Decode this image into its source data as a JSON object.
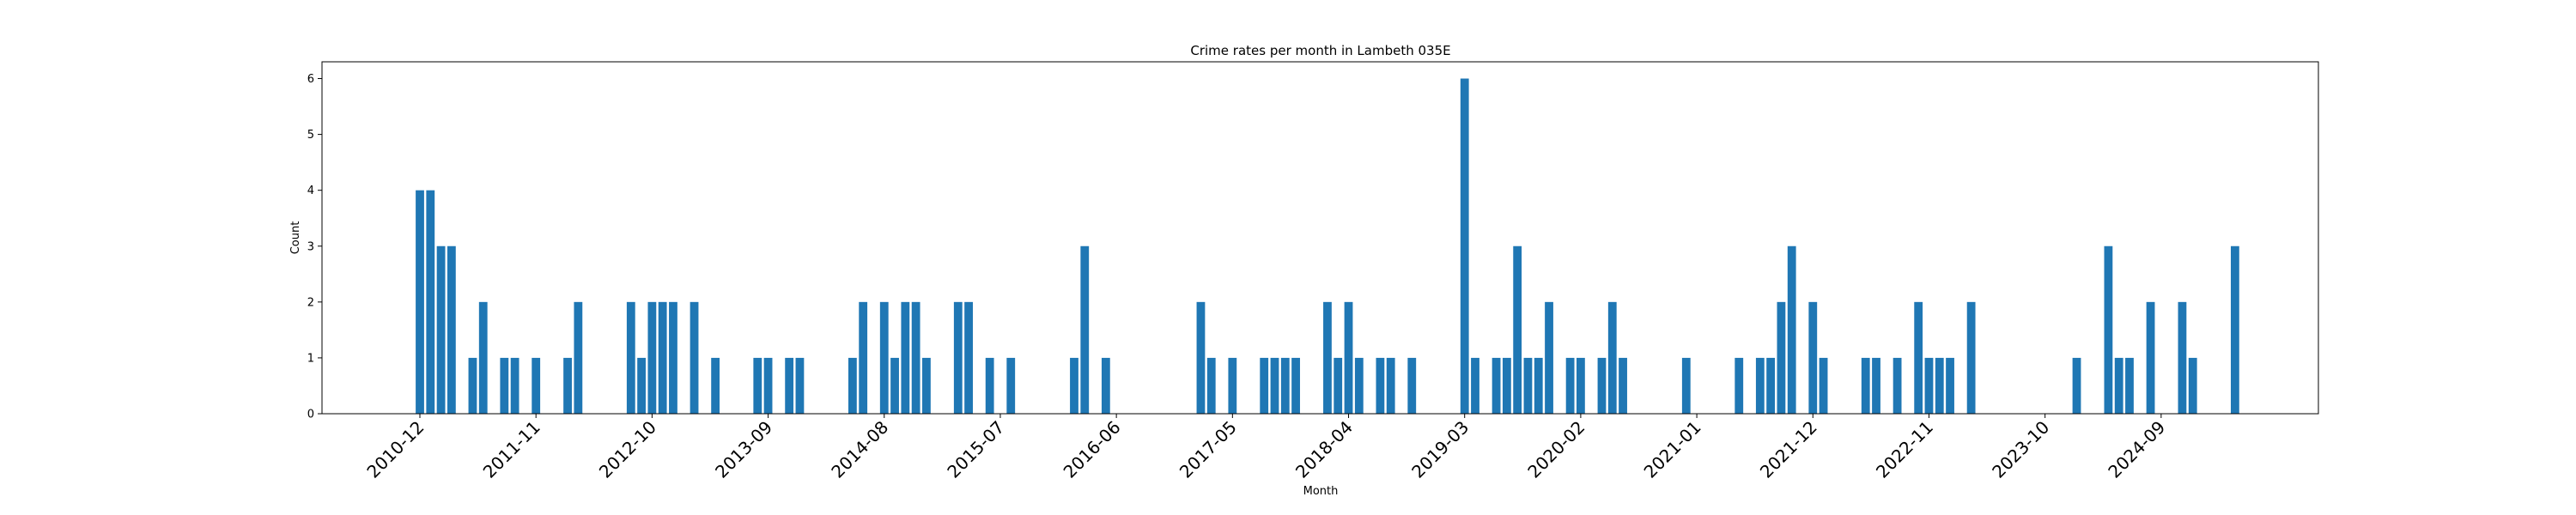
{
  "chart_data": {
    "type": "bar",
    "title": "Crime rates per month in Lambeth 035E",
    "xlabel": "Month",
    "ylabel": "Count",
    "ylim": [
      0,
      6.3
    ],
    "yticks": [
      0,
      1,
      2,
      3,
      4,
      5,
      6
    ],
    "grid": false,
    "legend": "none",
    "bar_color": "#1f77b4",
    "xticks": [
      "2010-12",
      "2011-11",
      "2012-10",
      "2013-09",
      "2014-08",
      "2015-07",
      "2016-06",
      "2017-05",
      "2018-04",
      "2019-03",
      "2020-02",
      "2021-01",
      "2021-12",
      "2022-11",
      "2023-10",
      "2024-09"
    ],
    "x": [
      "2010-12",
      "2011-01",
      "2011-02",
      "2011-03",
      "2011-05",
      "2011-06",
      "2011-08",
      "2011-09",
      "2011-11",
      "2012-02",
      "2012-03",
      "2012-08",
      "2012-09",
      "2012-10",
      "2012-11",
      "2012-12",
      "2013-02",
      "2013-04",
      "2013-08",
      "2013-09",
      "2013-11",
      "2013-12",
      "2014-05",
      "2014-06",
      "2014-08",
      "2014-09",
      "2014-10",
      "2014-11",
      "2014-12",
      "2015-03",
      "2015-04",
      "2015-06",
      "2015-08",
      "2016-02",
      "2016-03",
      "2016-05",
      "2017-02",
      "2017-03",
      "2017-05",
      "2017-08",
      "2017-09",
      "2017-10",
      "2017-11",
      "2018-02",
      "2018-03",
      "2018-04",
      "2018-05",
      "2018-07",
      "2018-08",
      "2018-10",
      "2019-03",
      "2019-04",
      "2019-06",
      "2019-07",
      "2019-08",
      "2019-09",
      "2019-10",
      "2019-11",
      "2020-01",
      "2020-02",
      "2020-04",
      "2020-05",
      "2020-06",
      "2020-12",
      "2021-05",
      "2021-07",
      "2021-08",
      "2021-09",
      "2021-10",
      "2021-12",
      "2022-01",
      "2022-05",
      "2022-06",
      "2022-08",
      "2022-10",
      "2022-11",
      "2022-12",
      "2023-01",
      "2023-03",
      "2024-01",
      "2024-04",
      "2024-05",
      "2024-06",
      "2024-08",
      "2024-11",
      "2024-12",
      "2025-04"
    ],
    "values": [
      4,
      4,
      3,
      3,
      1,
      2,
      1,
      1,
      1,
      1,
      2,
      2,
      1,
      2,
      2,
      2,
      2,
      1,
      1,
      1,
      1,
      1,
      1,
      2,
      2,
      1,
      2,
      2,
      1,
      2,
      2,
      1,
      1,
      1,
      3,
      1,
      2,
      1,
      1,
      1,
      1,
      1,
      1,
      2,
      1,
      2,
      1,
      1,
      1,
      1,
      6,
      1,
      1,
      1,
      3,
      1,
      1,
      2,
      1,
      1,
      1,
      2,
      1,
      1,
      1,
      1,
      1,
      2,
      3,
      2,
      1,
      1,
      1,
      1,
      2,
      1,
      1,
      1,
      2,
      1,
      3,
      1,
      1,
      2,
      2,
      1,
      3
    ]
  }
}
